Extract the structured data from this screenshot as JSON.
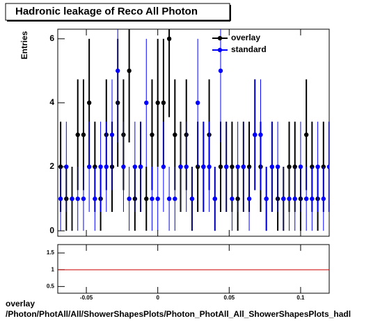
{
  "chart_data": [
    {
      "type": "scatter",
      "title": "Hadronic leakage of Reco All Photon",
      "y_label": "Entries",
      "xlim": [
        -0.07,
        0.12
      ],
      "xticks": [
        -0.05,
        0,
        0.05,
        0.1
      ],
      "ylim": [
        -0.17,
        6.3
      ],
      "yticks": [
        0,
        2,
        4,
        6
      ],
      "legend": "top-right",
      "x": [
        -0.068,
        -0.064,
        -0.06,
        -0.056,
        -0.052,
        -0.048,
        -0.044,
        -0.04,
        -0.036,
        -0.032,
        -0.028,
        -0.024,
        -0.02,
        -0.016,
        -0.012,
        -0.008,
        -0.004,
        0,
        0.004,
        0.008,
        0.012,
        0.016,
        0.02,
        0.024,
        0.028,
        0.032,
        0.036,
        0.04,
        0.044,
        0.048,
        0.052,
        0.056,
        0.06,
        0.064,
        0.068,
        0.072,
        0.076,
        0.08,
        0.084,
        0.088,
        0.092,
        0.096,
        0.1,
        0.104,
        0.108,
        0.112,
        0.116,
        0.12
      ],
      "series": [
        {
          "name": "overlay",
          "color": "#000000",
          "values": [
            2,
            1,
            1,
            3,
            3,
            4,
            2,
            1,
            3,
            2,
            4,
            3,
            5,
            1,
            2,
            1,
            3,
            4,
            4,
            6,
            3,
            2,
            3,
            1,
            2,
            2,
            3,
            1,
            2,
            2,
            2,
            1,
            2,
            2,
            3,
            2,
            1,
            2,
            1,
            1,
            2,
            2,
            1,
            3,
            2,
            1,
            2,
            2
          ],
          "errors": [
            1.41,
            1,
            1,
            1.73,
            1.73,
            2,
            1.41,
            1,
            1.73,
            1.41,
            2,
            1.73,
            2.24,
            1,
            1.41,
            1,
            1.73,
            2,
            2,
            2.45,
            1.73,
            1.41,
            1.73,
            1,
            1.41,
            1.41,
            1.73,
            1,
            1.41,
            1.41,
            1.41,
            1,
            1.41,
            1.41,
            1.73,
            1.41,
            1,
            1.41,
            1,
            1,
            1.41,
            1.41,
            1,
            1.73,
            1.41,
            1,
            1.41,
            1.41
          ]
        },
        {
          "name": "standard",
          "color": "#0000ff",
          "values": [
            1,
            2,
            1,
            1,
            1,
            2,
            1,
            2,
            2,
            3,
            5,
            2,
            1,
            2,
            2,
            4,
            1,
            1,
            2,
            1,
            1,
            2,
            2,
            1,
            4,
            2,
            2,
            1,
            5,
            2,
            1,
            2,
            2,
            1,
            3,
            3,
            1,
            2,
            2,
            1,
            1,
            1,
            2,
            1,
            1,
            2,
            1,
            2
          ],
          "errors": [
            1,
            1.41,
            1,
            1,
            1,
            1.41,
            1,
            1.41,
            1.41,
            1.73,
            2.24,
            1.41,
            1,
            1.41,
            1.41,
            2,
            1,
            1,
            1.41,
            1,
            1,
            1.41,
            1.41,
            1,
            2,
            1.41,
            1.41,
            1,
            2.24,
            1.41,
            1,
            1.41,
            1.41,
            1,
            1.73,
            1.73,
            1,
            1.41,
            1.41,
            1,
            1,
            1,
            1.41,
            1,
            1,
            1.41,
            1,
            1.41
          ]
        }
      ]
    },
    {
      "type": "ratio",
      "xlim": [
        -0.07,
        0.12
      ],
      "xticks": [
        -0.05,
        0,
        0.05,
        0.1
      ],
      "ylim": [
        0.3,
        1.75
      ],
      "yticks": [
        0.5,
        1,
        1.5
      ],
      "reference_line": 1,
      "color": "#cc0000"
    }
  ],
  "footer": {
    "label": "overlay",
    "path": "/Photon/PhotAll/All/ShowerShapesPlots/Photon_PhotAll_All_ShowerShapesPlots_hadl"
  }
}
